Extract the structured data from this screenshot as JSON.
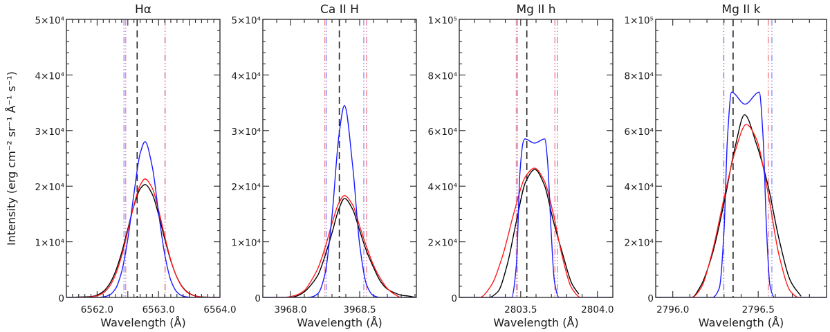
{
  "chart_data": [
    {
      "type": "line",
      "title": "Hα",
      "xlabel": "Wavelength (Å)",
      "ylabel": "Intensity (erg cm⁻² sr⁻¹ Å⁻¹ s⁻¹)",
      "xlim": [
        6561.5,
        6564.0
      ],
      "ylim": [
        0,
        50000
      ],
      "xticks": [
        6562.0,
        6563.0,
        6564.0
      ],
      "xtick_labels": [
        "6562.0",
        "6563.0",
        "6564.0"
      ],
      "yticks": [
        0,
        10000,
        20000,
        30000,
        40000,
        50000
      ],
      "ytick_labels": [
        "0",
        "1×10⁴",
        "2×10⁴",
        "3×10⁴",
        "4×10⁴",
        "5×10⁴"
      ],
      "center_line": 6562.652,
      "vlines": [
        {
          "x": 6562.438,
          "series": "blue"
        },
        {
          "x": 6562.465,
          "series": "red"
        },
        {
          "x": 6563.107,
          "series": "blue"
        },
        {
          "x": 6563.107,
          "series": "red"
        }
      ],
      "series": [
        {
          "color": "black",
          "x": [
            6561.5,
            6561.9,
            6562.0,
            6562.1,
            6562.2,
            6562.3,
            6562.4,
            6562.5,
            6562.6,
            6562.7,
            6562.78,
            6562.9,
            6563.0,
            6563.1,
            6563.2,
            6563.3,
            6563.4,
            6563.5,
            6563.6,
            6563.7,
            6564.0
          ],
          "y": [
            0,
            150,
            420,
            1060,
            2380,
            4670,
            8080,
            12320,
            16500,
            19490,
            20300,
            18520,
            14900,
            10560,
            6590,
            3620,
            1750,
            740,
            280,
            90,
            0
          ]
        },
        {
          "color": "red",
          "x": [
            6561.5,
            6561.9,
            6562.0,
            6562.1,
            6562.2,
            6562.3,
            6562.4,
            6562.5,
            6562.6,
            6562.7,
            6562.78,
            6562.9,
            6563.0,
            6563.1,
            6563.2,
            6563.3,
            6563.4,
            6563.5,
            6563.6,
            6563.7,
            6564.0
          ],
          "y": [
            0,
            90,
            300,
            810,
            1950,
            4100,
            7500,
            11960,
            16620,
            20150,
            21300,
            19600,
            15750,
            11020,
            6720,
            3580,
            1660,
            670,
            240,
            70,
            0
          ]
        },
        {
          "color": "blue",
          "x": [
            6561.5,
            6561.9,
            6562.0,
            6562.1,
            6562.2,
            6562.3,
            6562.4,
            6562.5,
            6562.6,
            6562.7,
            6562.78,
            6562.9,
            6563.0,
            6563.1,
            6563.2,
            6563.3,
            6563.4,
            6563.5,
            6563.6,
            6563.7,
            6564.0
          ],
          "y": [
            0,
            0,
            10,
            90,
            420,
            1570,
            4630,
            10500,
            18670,
            25850,
            28000,
            23390,
            15290,
            7790,
            3090,
            950,
            230,
            40,
            0,
            0,
            0
          ]
        }
      ]
    },
    {
      "type": "line",
      "title": "Ca  II  H",
      "xlabel": "Wavelength (Å)",
      "xlim": [
        3967.8,
        3968.91
      ],
      "ylim": [
        0,
        50000
      ],
      "xticks": [
        3968.0,
        3968.5
      ],
      "xtick_labels": [
        "3968.0",
        "3968.5"
      ],
      "yticks": [
        0,
        10000,
        20000,
        30000,
        40000,
        50000
      ],
      "ytick_labels": [
        "0",
        "1×10⁴",
        "2×10⁴",
        "3×10⁴",
        "4×10⁴",
        "5×10⁴"
      ],
      "center_line": 3968.353,
      "vlines": [
        {
          "x": 3968.248,
          "series": "red"
        },
        {
          "x": 3968.26,
          "series": "blue"
        },
        {
          "x": 3968.53,
          "series": "blue"
        },
        {
          "x": 3968.55,
          "series": "red"
        }
      ],
      "series": [
        {
          "color": "black",
          "x": [
            3967.8,
            3967.95,
            3968.0,
            3968.05,
            3968.1,
            3968.15,
            3968.2,
            3968.25,
            3968.3,
            3968.35,
            3968.39,
            3968.45,
            3968.5,
            3968.55,
            3968.6,
            3968.65,
            3968.7,
            3968.75,
            3968.8,
            3968.85,
            3968.9
          ],
          "y": [
            0,
            0,
            0,
            300,
            1000,
            2300,
            4100,
            7500,
            11600,
            15900,
            17800,
            15800,
            12000,
            8300,
            5400,
            2900,
            1500,
            850,
            400,
            250,
            30
          ]
        },
        {
          "color": "red",
          "x": [
            3967.8,
            3967.95,
            3968.0,
            3968.05,
            3968.1,
            3968.15,
            3968.2,
            3968.25,
            3968.3,
            3968.35,
            3968.39,
            3968.45,
            3968.5,
            3968.55,
            3968.6,
            3968.65,
            3968.7,
            3968.75,
            3968.8,
            3968.85,
            3968.9
          ],
          "y": [
            0,
            0,
            150,
            500,
            1240,
            3000,
            5350,
            8960,
            13300,
            17000,
            18300,
            16600,
            12800,
            9100,
            5800,
            3400,
            1600,
            600,
            0,
            0,
            0
          ]
        },
        {
          "color": "blue",
          "x": [
            3967.8,
            3967.95,
            3968.0,
            3968.05,
            3968.1,
            3968.15,
            3968.2,
            3968.25,
            3968.3,
            3968.35,
            3968.39,
            3968.45,
            3968.5,
            3968.55,
            3968.6,
            3968.65,
            3968.7,
            3968.75,
            3968.8,
            3968.85,
            3968.9
          ],
          "y": [
            0,
            0,
            0,
            0,
            0,
            75,
            740,
            4300,
            14600,
            29100,
            34500,
            23500,
            9500,
            2270,
            320,
            0,
            0,
            0,
            0,
            0,
            0
          ]
        }
      ]
    },
    {
      "type": "line",
      "title": "Mg  II  h",
      "xlabel": "Wavelength (Å)",
      "xlim": [
        2803.1,
        2804.1
      ],
      "ylim": [
        0,
        100000
      ],
      "xticks": [
        2803.5,
        2804.0
      ],
      "xtick_labels": [
        "2803.5",
        "2804.0"
      ],
      "yticks": [
        0,
        20000,
        40000,
        60000,
        80000,
        100000
      ],
      "ytick_labels": [
        "0",
        "2×10⁴",
        "4×10⁴",
        "6×10⁴",
        "8×10⁴",
        "1×10⁵"
      ],
      "center_line": 2803.54,
      "vlines": [
        {
          "x": 2803.472,
          "series": "red"
        },
        {
          "x": 2803.478,
          "series": "blue"
        },
        {
          "x": 2803.723,
          "series": "red"
        },
        {
          "x": 2803.74,
          "series": "blue"
        }
      ],
      "series": [
        {
          "color": "black",
          "x": [
            2803.1,
            2803.292,
            2803.352,
            2803.412,
            2803.472,
            2803.532,
            2803.592,
            2803.653,
            2803.713,
            2803.773,
            2803.833,
            2803.878
          ],
          "y": [
            0,
            0,
            2100,
            11700,
            27400,
            41500,
            46000,
            40600,
            27400,
            15700,
            5000,
            1200
          ]
        },
        {
          "color": "red",
          "x": [
            2803.1,
            2803.232,
            2803.307,
            2803.382,
            2803.457,
            2803.532,
            2803.59,
            2803.653,
            2803.713,
            2803.773,
            2803.833,
            2803.893,
            2804.1
          ],
          "y": [
            0,
            0,
            4200,
            14900,
            30600,
            43500,
            46500,
            42000,
            29900,
            14200,
            3300,
            0,
            0
          ]
        },
        {
          "color": "blue",
          "x": [
            2803.1,
            2803.4,
            2803.44,
            2803.472,
            2803.495,
            2803.517,
            2803.528,
            2803.59,
            2803.657,
            2803.675,
            2803.698,
            2803.72,
            2803.75,
            2803.8,
            2804.1
          ],
          "y": [
            0,
            0,
            0,
            11700,
            44800,
            56000,
            57000,
            55500,
            57000,
            49000,
            24100,
            5700,
            0,
            0,
            0
          ]
        }
      ]
    },
    {
      "type": "line",
      "title": "Mg  II  k",
      "xlabel": "Wavelength (Å)",
      "xlim": [
        2795.9,
        2796.9
      ],
      "ylim": [
        0,
        100000
      ],
      "xticks": [
        2796.0,
        2796.5
      ],
      "xtick_labels": [
        "2796.0",
        "2796.5"
      ],
      "yticks": [
        0,
        20000,
        40000,
        60000,
        80000,
        100000
      ],
      "ytick_labels": [
        "0",
        "2×10⁴",
        "4×10⁴",
        "6×10⁴",
        "8×10⁴",
        "1×10⁵"
      ],
      "center_line": 2796.353,
      "vlines": [
        {
          "x": 2796.298,
          "series": "red"
        },
        {
          "x": 2796.298,
          "series": "blue"
        },
        {
          "x": 2796.559,
          "series": "red"
        },
        {
          "x": 2796.58,
          "series": "blue"
        }
      ],
      "series": [
        {
          "color": "black",
          "x": [
            2795.9,
            2796.11,
            2796.164,
            2796.232,
            2796.3,
            2796.367,
            2796.42,
            2796.488,
            2796.556,
            2796.623,
            2796.69,
            2796.751
          ],
          "y": [
            0,
            0,
            4200,
            15700,
            34000,
            54700,
            65700,
            55500,
            40600,
            20700,
            5800,
            400
          ]
        },
        {
          "color": "red",
          "x": [
            2795.9,
            2796.11,
            2796.164,
            2796.232,
            2796.3,
            2796.367,
            2796.43,
            2796.488,
            2796.556,
            2796.623,
            2796.69,
            2796.738,
            2796.9
          ],
          "y": [
            0,
            0,
            3300,
            16600,
            35700,
            53000,
            62200,
            57200,
            38100,
            14900,
            2100,
            0,
            0
          ]
        },
        {
          "color": "blue",
          "x": [
            2795.9,
            2796.232,
            2796.272,
            2796.3,
            2796.32,
            2796.344,
            2796.423,
            2796.506,
            2796.529,
            2796.549,
            2796.569,
            2796.596,
            2796.9
          ],
          "y": [
            0,
            0,
            3300,
            24100,
            57200,
            73800,
            69500,
            73800,
            57200,
            24100,
            4200,
            0,
            0
          ]
        }
      ]
    }
  ],
  "colors": {
    "black": "#000000",
    "red": "#ff1a1a",
    "blue": "#1a1aff",
    "vline_red": "#f07a8a",
    "vline_blue": "#8c8cff",
    "center_line": "#222222"
  },
  "grid": false
}
